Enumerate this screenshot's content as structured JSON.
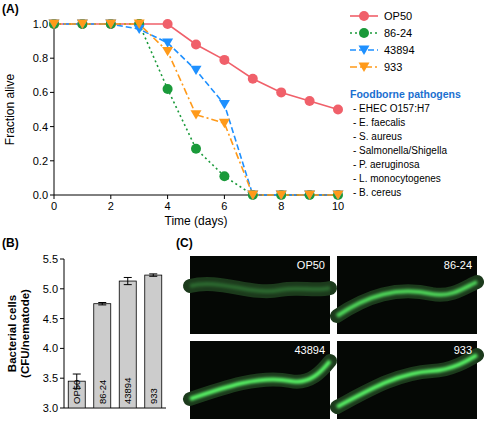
{
  "chart_data": [
    {
      "type": "line",
      "title": "(A)",
      "x": [
        0,
        1,
        2,
        3,
        4,
        5,
        6,
        7,
        8,
        9,
        10
      ],
      "series": [
        {
          "name": "OP50",
          "color": "#f0606a",
          "marker": "circle",
          "line_style": "solid",
          "values": [
            1,
            1,
            1,
            1,
            1,
            0.88,
            0.79,
            0.68,
            0.6,
            0.55,
            0.5
          ]
        },
        {
          "name": "86-24",
          "color": "#1a9a3a",
          "marker": "circle",
          "line_style": "dotted",
          "values": [
            1,
            1,
            1,
            1,
            0.62,
            0.27,
            0.11,
            0,
            0,
            0,
            0
          ]
        },
        {
          "name": "43894",
          "color": "#1e90ff",
          "marker": "triangle-down",
          "line_style": "dashed",
          "values": [
            1,
            1,
            1,
            0.97,
            0.89,
            0.73,
            0.53,
            0,
            0,
            0,
            0
          ]
        },
        {
          "name": "933",
          "color": "#ff9a1a",
          "marker": "triangle-down",
          "line_style": "dashdot",
          "values": [
            1,
            1,
            1,
            1,
            0.84,
            0.47,
            0.42,
            0,
            0,
            0,
            0
          ]
        }
      ],
      "xlim": [
        0,
        10
      ],
      "ylim": [
        0,
        1
      ],
      "xticks": [
        0,
        2,
        4,
        6,
        8,
        10
      ],
      "yticks": [
        {
          "value": 0,
          "label": "0.0"
        },
        {
          "value": 0.2,
          "label": "0.2"
        },
        {
          "value": 0.4,
          "label": "0.4"
        },
        {
          "value": 0.6,
          "label": "0.6"
        },
        {
          "value": 0.8,
          "label": "0.8"
        },
        {
          "value": 1,
          "label": "1.0"
        }
      ],
      "x_label": "Time (days)",
      "y_label": "Fraction alive",
      "legend": "right",
      "annotations": [
        "Foodborne pathogens",
        "- EHEC O157:H7",
        "- E. faecalis",
        "- S. aureus",
        "- Salmonella/Shigella",
        "- P. aeruginosa",
        "- L. monocytogenes",
        "- B. cereus"
      ]
    },
    {
      "type": "bar",
      "title": "(B)",
      "categories": [
        "OP50",
        "86-24",
        "43894",
        "933"
      ],
      "values": [
        3.45,
        4.75,
        5.13,
        5.23
      ],
      "errors": [
        0.12,
        0.02,
        0.06,
        0.02
      ],
      "color": "#cccccc",
      "ylim": [
        3,
        5.5
      ],
      "yticks": [
        {
          "value": 3,
          "label": "3.0"
        },
        {
          "value": 3.5,
          "label": "3.5"
        },
        {
          "value": 4,
          "label": "4.0"
        },
        {
          "value": 4.5,
          "label": "4.5"
        },
        {
          "value": 5,
          "label": "5.0"
        },
        {
          "value": 5.5,
          "label": "5.5"
        }
      ],
      "y_label": "Bacterial cells (CFU/nematode)",
      "tick_labels": "y"
    }
  ],
  "panel_c": {
    "label": "(C)",
    "images": [
      "OP50",
      "86-24",
      "43894",
      "933"
    ]
  }
}
